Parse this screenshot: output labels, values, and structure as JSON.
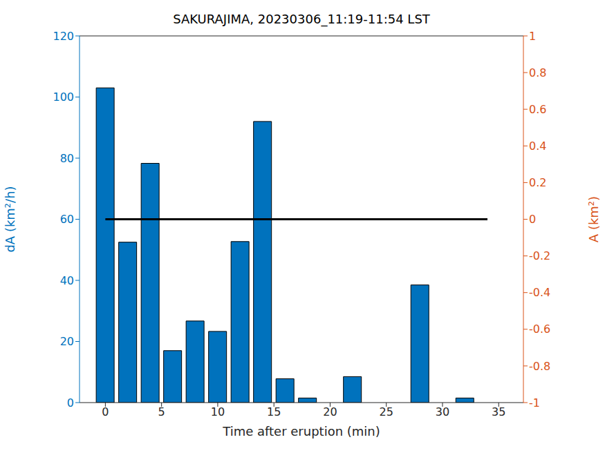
{
  "chart_data": {
    "type": "bar",
    "title": "SAKURAJIMA, 20230306_11:19-11:54 LST",
    "x_label": "Time after eruption (min)",
    "y_label": "dA (km²/h)",
    "y2_label": "A (km²)",
    "xlim": [
      -2.3,
      37.2
    ],
    "xticks": [
      0,
      5,
      10,
      15,
      20,
      25,
      30,
      35
    ],
    "ylim": [
      0,
      120
    ],
    "yticks": [
      0,
      20,
      40,
      60,
      80,
      100,
      120
    ],
    "y2lim": [
      -1,
      1
    ],
    "y2ticks": [
      -1,
      -0.8,
      -0.6,
      -0.4,
      -0.2,
      0,
      0.2,
      0.4,
      0.6,
      0.8,
      1
    ],
    "series": [
      {
        "name": "dA",
        "type": "bar",
        "color": "#0072bd",
        "x": [
          0,
          2,
          4,
          6,
          8,
          10,
          12,
          14,
          16,
          18,
          20,
          22,
          24,
          26,
          28,
          30,
          32
        ],
        "values": [
          103,
          52.5,
          78.3,
          17,
          26.7,
          23.3,
          52.7,
          92,
          7.8,
          1.5,
          0,
          8.5,
          0,
          0,
          38.5,
          0,
          1.5
        ]
      },
      {
        "name": "A",
        "type": "line",
        "axis": "y2",
        "color": "#000000",
        "x": [
          0,
          2,
          4,
          6,
          8,
          10,
          12,
          14,
          16,
          18,
          20,
          22,
          24,
          26,
          28,
          30,
          32,
          34
        ],
        "values": [
          0,
          0,
          0,
          0,
          0,
          0,
          0,
          0,
          0,
          0,
          0,
          0,
          0,
          0,
          0,
          0,
          0,
          0
        ]
      }
    ]
  }
}
